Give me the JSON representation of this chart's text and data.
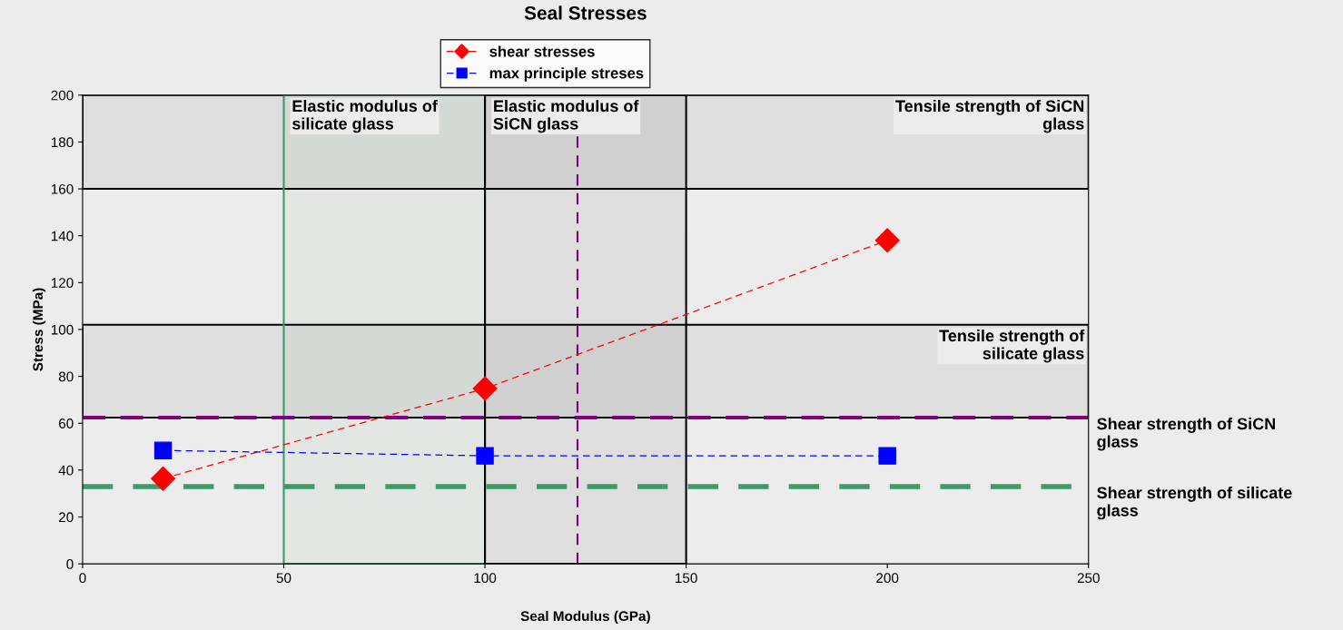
{
  "chart_data": {
    "type": "line",
    "title": "Seal Stresses",
    "xlabel": "Seal Modulus (GPa)",
    "ylabel": "Stress (MPa)",
    "x": [
      20,
      100,
      200
    ],
    "series": [
      {
        "name": "shear stresses",
        "color": "#ff0000",
        "marker": "diamond",
        "line_style": "dashed",
        "values": [
          36.4,
          74.8,
          138
        ]
      },
      {
        "name": "max principle streses",
        "color": "#0000ff",
        "marker": "square",
        "line_style": "dashed",
        "values": [
          48.4,
          46.1,
          46.1
        ]
      }
    ],
    "xlim": [
      0,
      250
    ],
    "xticks": [
      0,
      50,
      100,
      150,
      200,
      250
    ],
    "ylim": [
      0,
      200
    ],
    "yticks": [
      0,
      20,
      40,
      60,
      80,
      100,
      120,
      140,
      160,
      180,
      200
    ],
    "bands": [
      {
        "axis": "y",
        "from": 160,
        "to": 200,
        "label": "Tensile strength of SiCN\nglass",
        "color": "#000000"
      },
      {
        "axis": "y",
        "from": 62.4,
        "to": 102,
        "label": "Tensile strength of\nsilicate glass",
        "color": "#000000"
      },
      {
        "axis": "x",
        "from": 50,
        "to": 100,
        "label": "Elastic modulus of\nsilicate glass",
        "color": "#3c9a6a"
      },
      {
        "axis": "x",
        "from": 100,
        "to": 150,
        "label": "Elastic modulus of\nSiCN glass",
        "color": "#000000"
      }
    ],
    "ref_lines": [
      {
        "axis": "y",
        "value": 62.4,
        "label": "Shear strength of SiCN\nglass",
        "color": "#800080",
        "line_style": "dashed"
      },
      {
        "axis": "y",
        "value": 33,
        "label": "Shear strength of silicate\nglass",
        "color": "#3c9a6a",
        "line_style": "dashed"
      },
      {
        "axis": "x",
        "value": 123,
        "color": "#800080",
        "line_style": "dashed"
      }
    ],
    "grid": false,
    "legend": "top"
  }
}
